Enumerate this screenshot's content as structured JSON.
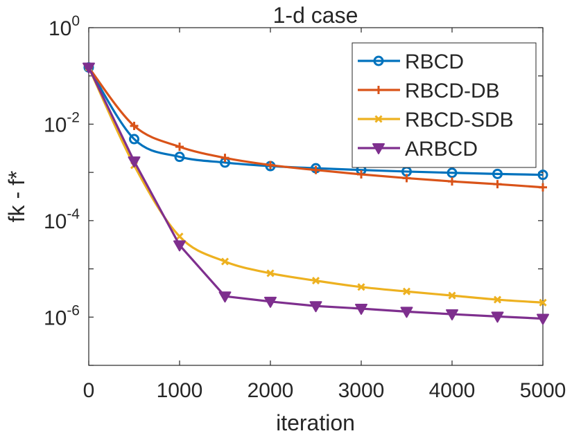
{
  "chart_data": {
    "type": "line",
    "title": "1-d case",
    "xlabel": "iteration",
    "ylabel": "fk - f*",
    "xlim": [
      0,
      5000
    ],
    "ylim": [
      1e-07,
      1
    ],
    "yscale": "log",
    "xticks": [
      0,
      1000,
      2000,
      3000,
      4000,
      5000
    ],
    "xtick_labels": [
      "0",
      "1000",
      "2000",
      "3000",
      "4000",
      "5000"
    ],
    "ytick_labels": [
      {
        "base": "10",
        "exp": "0",
        "value": 1
      },
      {
        "base": "10",
        "exp": "-2",
        "value": 0.01
      },
      {
        "base": "10",
        "exp": "-4",
        "value": 0.0001
      },
      {
        "base": "10",
        "exp": "-6",
        "value": 1e-06
      }
    ],
    "grid": false,
    "legend_position": "top-right",
    "series": [
      {
        "name": "RBCD",
        "color": "#0072BD",
        "marker": "circle",
        "x": [
          0,
          500,
          1000,
          1500,
          2000,
          2500,
          3000,
          3500,
          4000,
          4500,
          5000
        ],
        "y": [
          0.15,
          0.0049,
          0.0021,
          0.0016,
          0.00135,
          0.00122,
          0.00112,
          0.00104,
          0.00098,
          0.00093,
          0.00089
        ]
      },
      {
        "name": "RBCD-DB",
        "color": "#D95319",
        "marker": "plus",
        "x": [
          0,
          500,
          1000,
          1500,
          2000,
          2500,
          3000,
          3500,
          4000,
          4500,
          5000
        ],
        "y": [
          0.15,
          0.0092,
          0.0034,
          0.002,
          0.00142,
          0.00112,
          0.00091,
          0.00076,
          0.00065,
          0.00057,
          0.00049
        ]
      },
      {
        "name": "RBCD-SDB",
        "color": "#EDB120",
        "marker": "x",
        "x": [
          0,
          500,
          1000,
          1500,
          2000,
          2500,
          3000,
          3500,
          4000,
          4500,
          5000
        ],
        "y": [
          0.15,
          0.0014,
          4.7e-05,
          1.42e-05,
          8.1e-06,
          5.7e-06,
          4.2e-06,
          3.4e-06,
          2.8e-06,
          2.3e-06,
          2e-06
        ]
      },
      {
        "name": "ARBCD",
        "color": "#7E2F8E",
        "marker": "triangle-down",
        "x": [
          0,
          500,
          1000,
          1500,
          2000,
          2500,
          3000,
          3500,
          4000,
          4500,
          5000
        ],
        "y": [
          0.15,
          0.0017,
          3.1e-05,
          2.7e-06,
          2.1e-06,
          1.7e-06,
          1.5e-06,
          1.3e-06,
          1.15e-06,
          1.03e-06,
          9.3e-07
        ]
      }
    ]
  }
}
